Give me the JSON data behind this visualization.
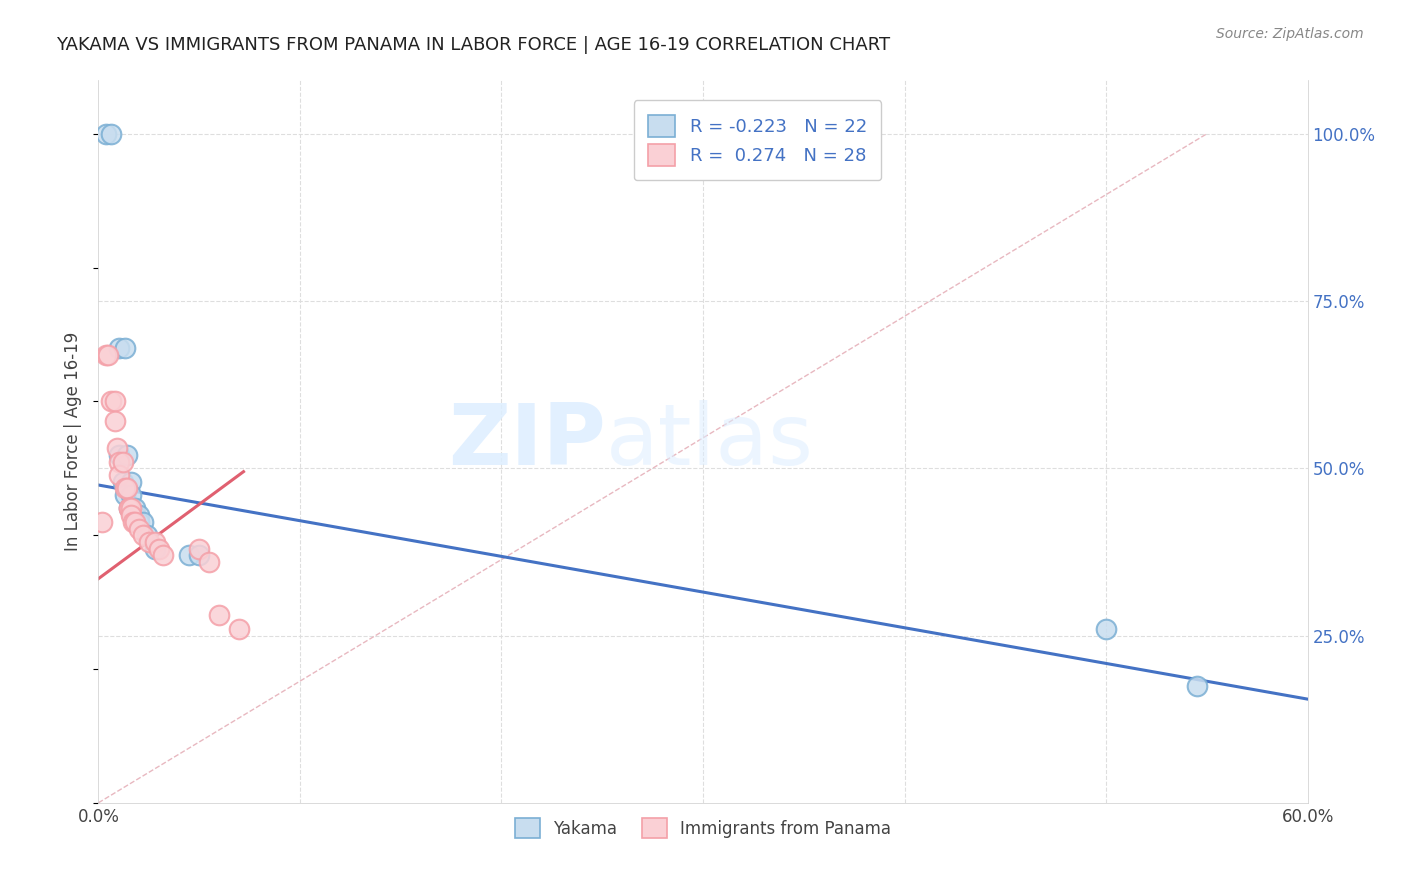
{
  "title": "YAKAMA VS IMMIGRANTS FROM PANAMA IN LABOR FORCE | AGE 16-19 CORRELATION CHART",
  "source": "Source: ZipAtlas.com",
  "ylabel": "In Labor Force | Age 16-19",
  "xlim": [
    0.0,
    0.6
  ],
  "ylim": [
    0.0,
    1.08
  ],
  "yticks_right": [
    0.25,
    0.5,
    0.75,
    1.0
  ],
  "yticklabels_right": [
    "25.0%",
    "50.0%",
    "75.0%",
    "100.0%"
  ],
  "blue_color": "#7BAFD4",
  "pink_color": "#F4A0A8",
  "blue_line_color": "#4472C4",
  "pink_line_color": "#E06070",
  "diag_color": "#D0D0D0",
  "legend_r_blue": "-0.223",
  "legend_n_blue": "22",
  "legend_r_pink": "0.274",
  "legend_n_pink": "28",
  "legend_label_blue": "Yakama",
  "legend_label_pink": "Immigrants from Panama",
  "blue_scatter_x": [
    0.004,
    0.006,
    0.01,
    0.013,
    0.01,
    0.014,
    0.012,
    0.016,
    0.013,
    0.016,
    0.015,
    0.018,
    0.018,
    0.02,
    0.02,
    0.022,
    0.024,
    0.028,
    0.045,
    0.05,
    0.5,
    0.545
  ],
  "blue_scatter_y": [
    1.0,
    1.0,
    0.68,
    0.68,
    0.52,
    0.52,
    0.48,
    0.48,
    0.46,
    0.46,
    0.44,
    0.44,
    0.43,
    0.43,
    0.42,
    0.42,
    0.4,
    0.38,
    0.37,
    0.37,
    0.26,
    0.175
  ],
  "pink_scatter_x": [
    0.002,
    0.004,
    0.005,
    0.006,
    0.008,
    0.008,
    0.009,
    0.01,
    0.01,
    0.012,
    0.013,
    0.014,
    0.015,
    0.015,
    0.016,
    0.016,
    0.017,
    0.018,
    0.02,
    0.022,
    0.025,
    0.028,
    0.03,
    0.032,
    0.05,
    0.055,
    0.06,
    0.07
  ],
  "pink_scatter_y": [
    0.42,
    0.67,
    0.67,
    0.6,
    0.6,
    0.57,
    0.53,
    0.51,
    0.49,
    0.51,
    0.47,
    0.47,
    0.44,
    0.44,
    0.44,
    0.43,
    0.42,
    0.42,
    0.41,
    0.4,
    0.39,
    0.39,
    0.38,
    0.37,
    0.38,
    0.36,
    0.28,
    0.26
  ],
  "blue_line_x": [
    0.0,
    0.6
  ],
  "blue_line_y": [
    0.475,
    0.155
  ],
  "pink_line_x": [
    0.0,
    0.072
  ],
  "pink_line_y": [
    0.335,
    0.495
  ],
  "diag_line_x": [
    0.0,
    0.55
  ],
  "diag_line_y": [
    0.0,
    1.0
  ],
  "watermark_zip": "ZIP",
  "watermark_atlas": "atlas",
  "background_color": "#FFFFFF",
  "grid_color": "#DEDEDE",
  "title_fontsize": 13,
  "source_fontsize": 10,
  "tick_fontsize": 12,
  "legend_fontsize": 13
}
